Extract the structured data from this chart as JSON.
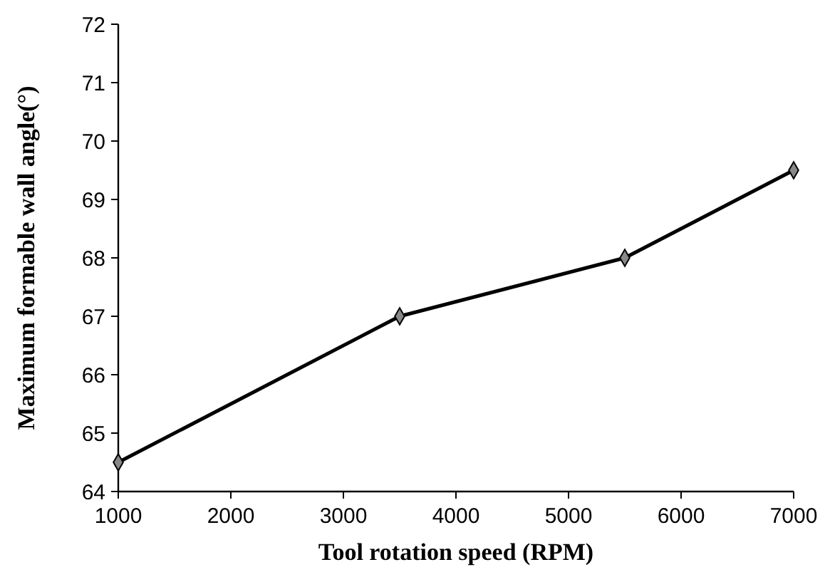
{
  "chart_data": {
    "type": "line",
    "xlabel": "Tool rotation speed (RPM)",
    "ylabel": "Maximum formable wall angle(°)",
    "x": [
      1000,
      3500,
      5500,
      7000
    ],
    "series": [
      {
        "color": "#000000",
        "values": [
          64.5,
          67,
          68,
          69.5
        ]
      }
    ],
    "xlim": [
      1000,
      7000
    ],
    "xticks": [
      1000,
      2000,
      3000,
      4000,
      5000,
      6000,
      7000
    ],
    "ylim": [
      64,
      72
    ],
    "yticks": [
      64,
      65,
      66,
      67,
      68,
      69,
      70,
      71,
      72
    ],
    "grid": false,
    "marker": "diamond",
    "line_style": "solid"
  }
}
